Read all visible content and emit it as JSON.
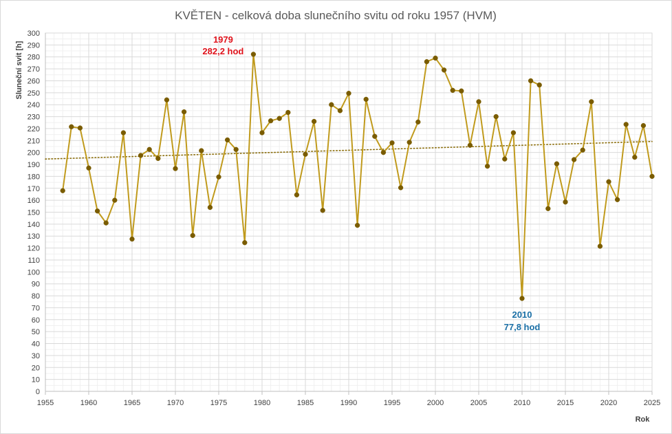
{
  "chart_data": {
    "type": "line",
    "title": "KVĚTEN - celková doba slunečního svitu od roku 1957 (HVM)",
    "xlabel": "Rok",
    "ylabel": "Sluneční svit [h]",
    "xlim": [
      1955,
      2025
    ],
    "ylim": [
      0,
      300
    ],
    "x_major_step": 5,
    "y_major_step": 10,
    "grid": true,
    "trendline": {
      "type": "linear",
      "style": "dotted",
      "from": [
        1955,
        194.5
      ],
      "to": [
        2025,
        209.2
      ]
    },
    "series": [
      {
        "color": "#c09a1c",
        "marker_color": "#7a5c00",
        "x": [
          1957,
          1958,
          1959,
          1960,
          1961,
          1962,
          1963,
          1964,
          1965,
          1966,
          1967,
          1968,
          1969,
          1970,
          1971,
          1972,
          1973,
          1974,
          1975,
          1976,
          1977,
          1978,
          1979,
          1980,
          1981,
          1982,
          1983,
          1984,
          1985,
          1986,
          1987,
          1988,
          1989,
          1990,
          1991,
          1992,
          1993,
          1994,
          1995,
          1996,
          1997,
          1998,
          1999,
          2000,
          2001,
          2002,
          2003,
          2004,
          2005,
          2006,
          2007,
          2008,
          2009,
          2010,
          2011,
          2012,
          2013,
          2014,
          2015,
          2016,
          2017,
          2018,
          2019,
          2020,
          2021,
          2022,
          2023,
          2024,
          2025
        ],
        "y": [
          168,
          221.5,
          220.5,
          187,
          151,
          141,
          160,
          216.5,
          127.5,
          197.5,
          202.5,
          195,
          244,
          186.5,
          234,
          130.5,
          201.5,
          154,
          179.5,
          210.5,
          202.5,
          124.5,
          282.2,
          216.5,
          226.5,
          228.5,
          233.5,
          164.5,
          198.5,
          226,
          151.5,
          240,
          235,
          249.5,
          139,
          244.5,
          213.5,
          200,
          208,
          170.5,
          208.5,
          225.5,
          276,
          279,
          269,
          252,
          251.5,
          206,
          242.5,
          188.5,
          230,
          194.5,
          216.5,
          77.8,
          260,
          256.5,
          153,
          190.5,
          158.5,
          194,
          202,
          242.5,
          121.5,
          175.5,
          160.5,
          223.5,
          196,
          222.5,
          180
        ]
      }
    ],
    "annotations": [
      {
        "year_label": "1979",
        "value_label": "282,2 hod",
        "x": 1979,
        "y": 282.2,
        "color": "#e0121b"
      },
      {
        "year_label": "2010",
        "value_label": "77,8 hod",
        "x": 2010,
        "y": 77.8,
        "color": "#1a6fa6"
      }
    ]
  }
}
